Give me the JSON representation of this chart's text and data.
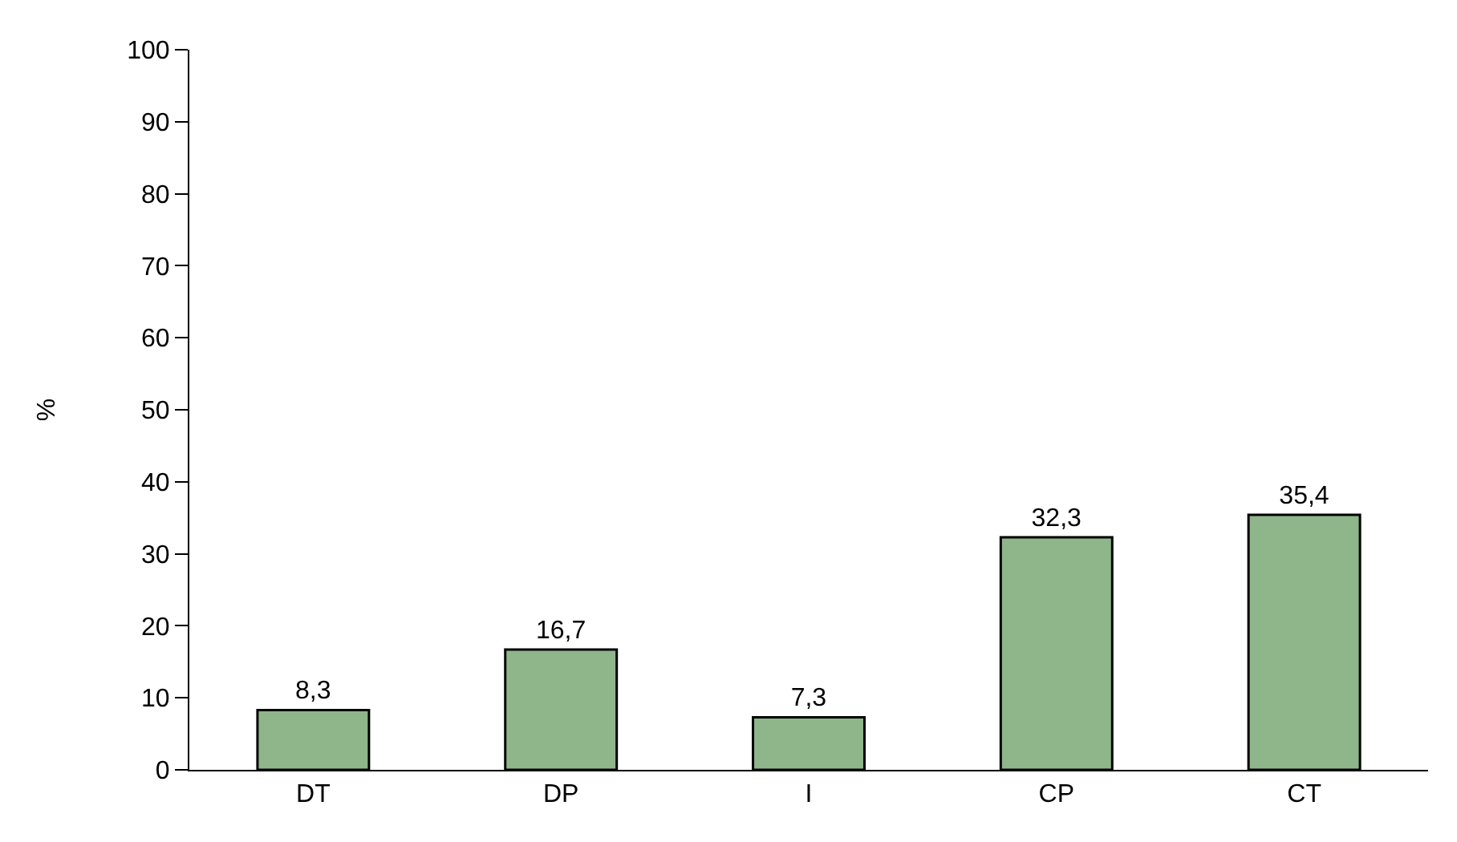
{
  "chart_data": {
    "type": "bar",
    "ylabel": "%",
    "categories": [
      "DT",
      "DP",
      "I",
      "CP",
      "CT"
    ],
    "values": [
      8.3,
      16.7,
      7.3,
      32.3,
      35.4
    ],
    "value_labels": [
      "8,3",
      "16,7",
      "7,3",
      "32,3",
      "35,4"
    ],
    "color": "#8fb58a",
    "ylim": [
      0,
      100
    ],
    "yticks": [
      0,
      10,
      20,
      30,
      40,
      50,
      60,
      70,
      80,
      90,
      100
    ]
  }
}
